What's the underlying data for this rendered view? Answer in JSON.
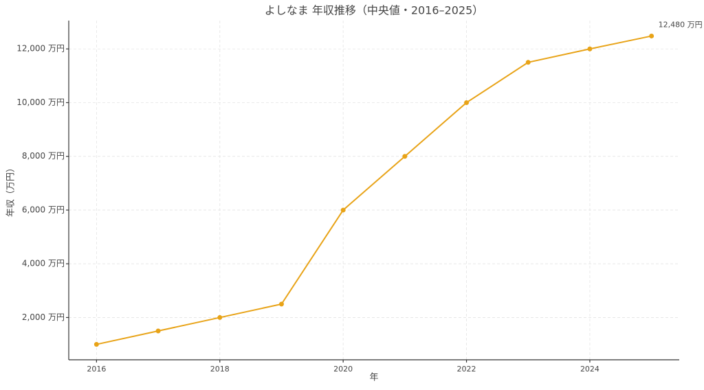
{
  "chart_data": {
    "type": "line",
    "title": "よしなま 年収推移（中央値・2016–2025）",
    "x_label": "年",
    "y_label": "年収（万円）",
    "annotation": "12,480 万円",
    "x": [
      2016,
      2017,
      2018,
      2019,
      2020,
      2021,
      2022,
      2023,
      2024,
      2025
    ],
    "series": [
      {
        "name": "年収",
        "color": "#e8a317",
        "values": [
          1000,
          1500,
          2000,
          2500,
          6000,
          8000,
          10000,
          11500,
          12000,
          12480
        ]
      }
    ],
    "xlim": [
      2015.55,
      2025.45
    ],
    "xticks": [
      2016,
      2018,
      2020,
      2022,
      2024
    ],
    "ylim": [
      426,
      13054
    ],
    "yticks": [
      {
        "value": 2000,
        "label": "2,000 万円"
      },
      {
        "value": 4000,
        "label": "4,000 万円"
      },
      {
        "value": 6000,
        "label": "6,000 万円"
      },
      {
        "value": 8000,
        "label": "8,000 万円"
      },
      {
        "value": 10000,
        "label": "10,000 万円"
      },
      {
        "value": 12000,
        "label": "12,000 万円"
      }
    ],
    "grid": true
  }
}
